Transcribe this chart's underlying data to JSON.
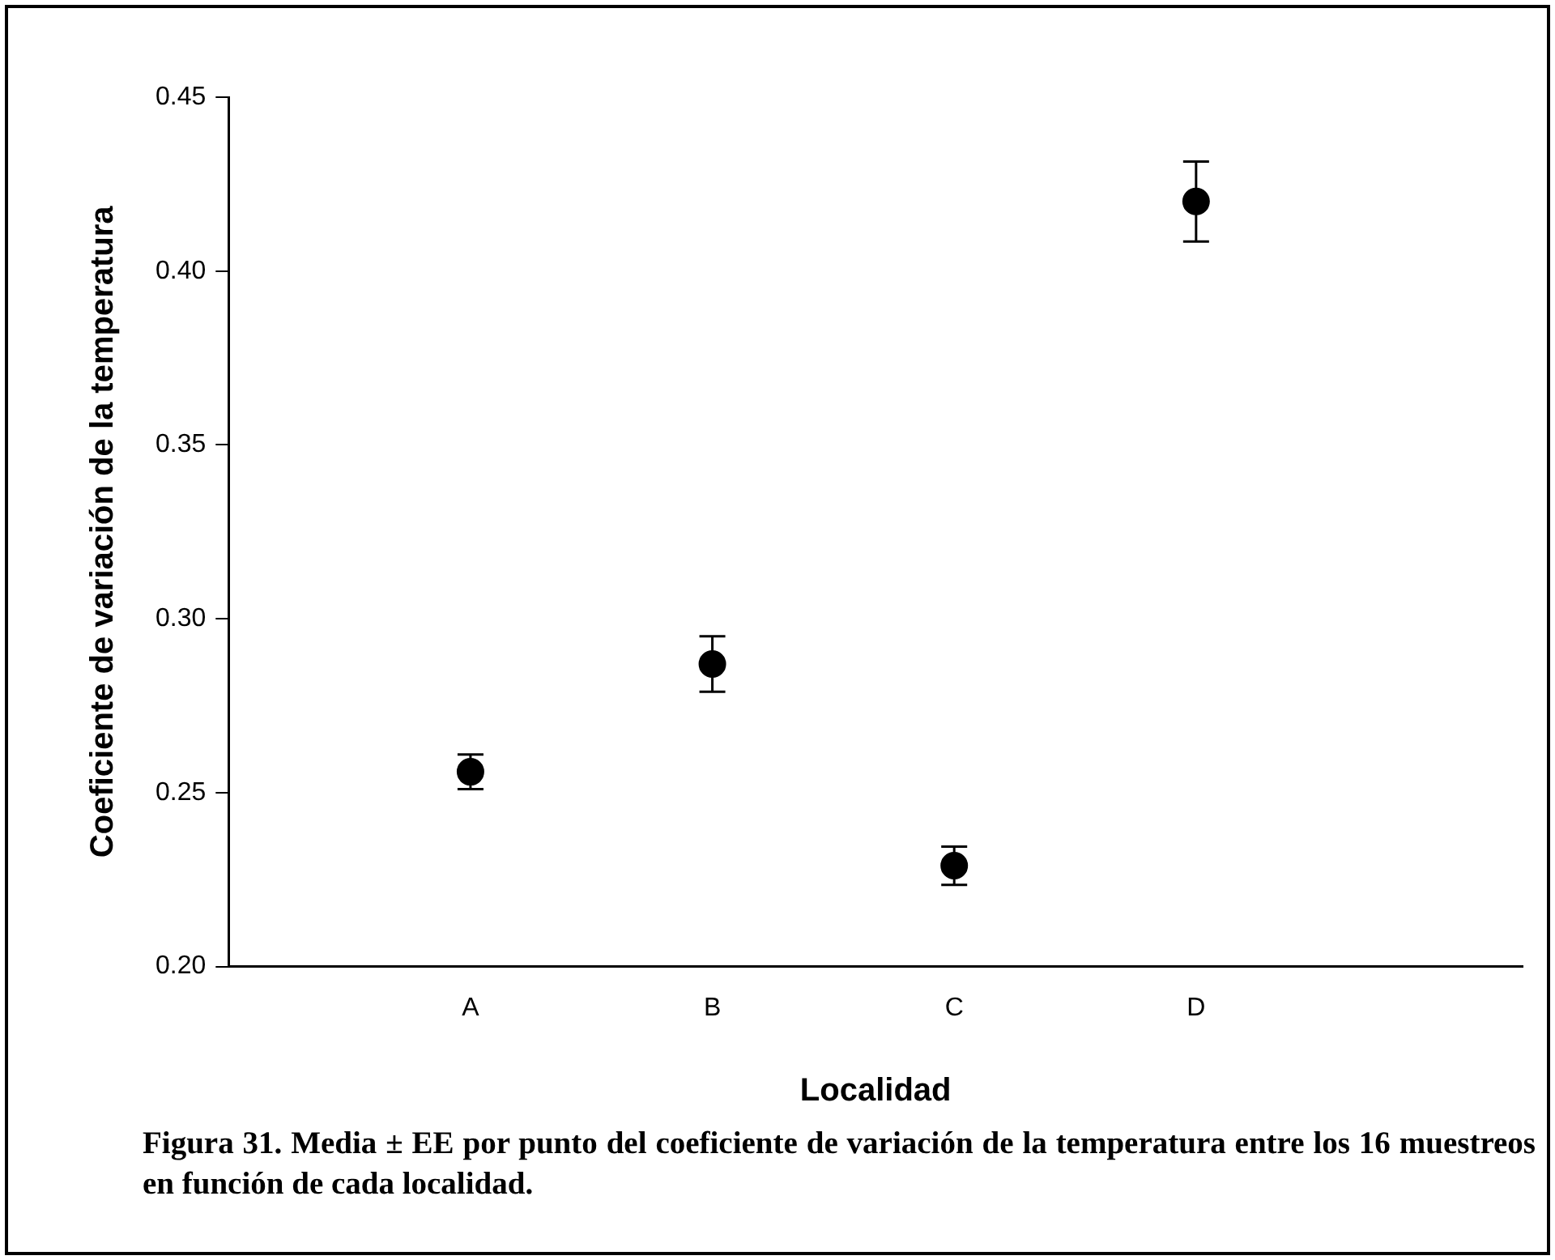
{
  "chart_data": {
    "type": "scatter",
    "xlabel": "Localidad",
    "ylabel": "Coeficiente de variación de la temperatura",
    "categories": [
      "A",
      "B",
      "C",
      "D"
    ],
    "series": [
      {
        "color": "#000000",
        "values": [
          0.256,
          0.287,
          0.229,
          0.42
        ],
        "errors": [
          0.005,
          0.008,
          0.0055,
          0.0115
        ]
      }
    ],
    "ylim": [
      0.2,
      0.45
    ],
    "yticks": [
      {
        "value": 0.2,
        "label": "0.20"
      },
      {
        "value": 0.25,
        "label": "0.25"
      },
      {
        "value": 0.3,
        "label": "0.30"
      },
      {
        "value": 0.35,
        "label": "0.35"
      },
      {
        "value": 0.4,
        "label": "0.40"
      },
      {
        "value": 0.45,
        "label": "0.45"
      }
    ],
    "grid": false,
    "legend": false,
    "marker": "circle",
    "annotations": [
      "Figura 31. Media ± EE por punto del coeficiente de variación de la temperatura entre los 16 muestreos en función de cada localidad."
    ]
  }
}
